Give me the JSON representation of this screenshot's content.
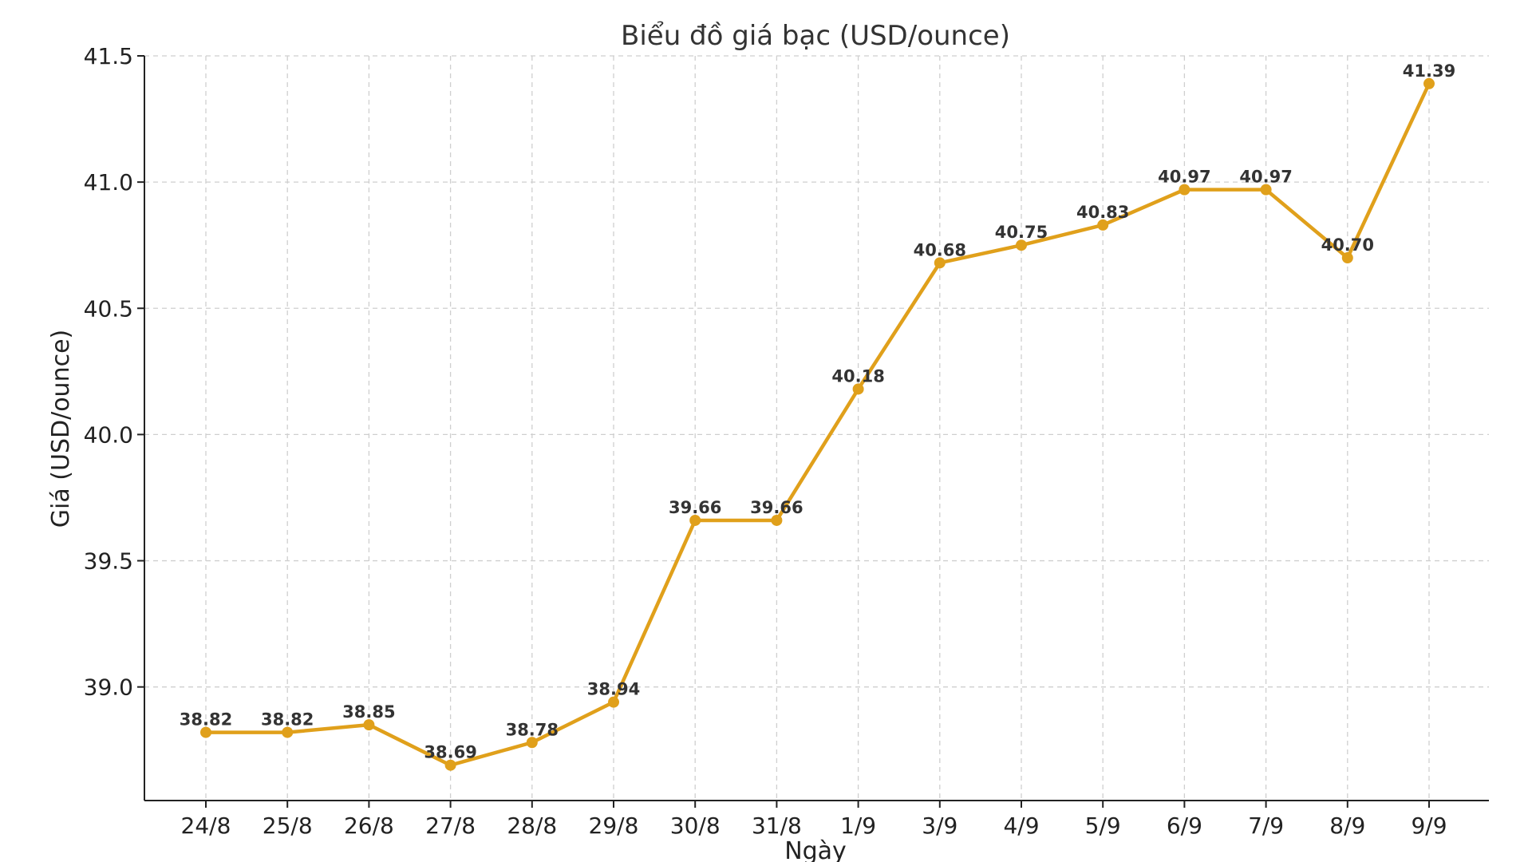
{
  "chart_data": {
    "type": "line",
    "title": "Biểu đồ giá bạc (USD/ounce)",
    "xlabel": "Ngày",
    "ylabel": "Giá (USD/ounce)",
    "categories": [
      "24/8",
      "25/8",
      "26/8",
      "27/8",
      "28/8",
      "29/8",
      "30/8",
      "31/8",
      "1/9",
      "3/9",
      "4/9",
      "5/9",
      "6/9",
      "7/9",
      "8/9",
      "9/9"
    ],
    "series": [
      {
        "values": [
          38.82,
          38.82,
          38.85,
          38.69,
          38.78,
          38.94,
          39.66,
          39.66,
          40.18,
          40.68,
          40.75,
          40.83,
          40.97,
          40.97,
          40.7,
          41.39
        ],
        "labels": [
          "38.82",
          "38.82",
          "38.85",
          "38.69",
          "38.78",
          "38.94",
          "39.66",
          "39.66",
          "40.18",
          "40.68",
          "40.75",
          "40.83",
          "40.97",
          "40.97",
          "40.70",
          "41.39"
        ],
        "color": "#E0A01B"
      }
    ],
    "yticks": [
      "39.0",
      "39.5",
      "40.0",
      "40.5",
      "41.0",
      "41.5"
    ],
    "ylim": [
      38.55,
      41.5
    ],
    "grid": true,
    "legend": "none"
  }
}
